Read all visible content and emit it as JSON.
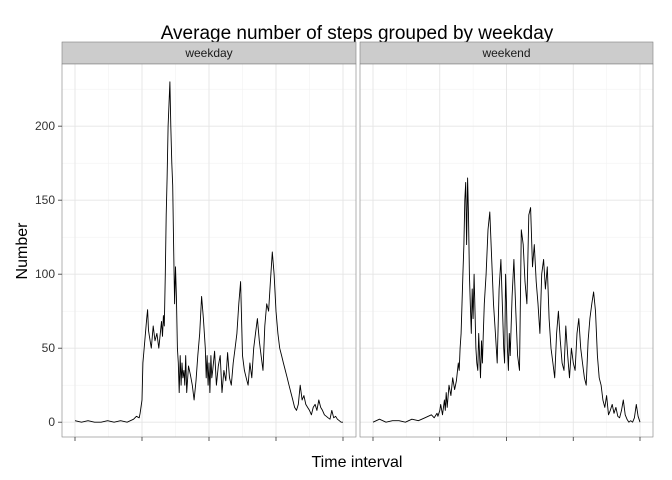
{
  "chart_data": {
    "type": "line",
    "title": "Average number of steps grouped by weekday",
    "xlabel": "Time interval",
    "ylabel": "Number",
    "xlim": [
      0,
      288
    ],
    "ylim": [
      -10,
      242
    ],
    "y_ticks": [
      0,
      50,
      100,
      150,
      200
    ],
    "x_ticks": [
      0,
      72,
      144,
      216,
      288
    ],
    "x_tick_labels": [
      "",
      "",
      "",
      "",
      ""
    ],
    "grid": true,
    "legend": "none",
    "line_color": "#000000",
    "panels": [
      {
        "name": "weekday",
        "x": [
          0,
          7,
          14,
          21,
          28,
          35,
          42,
          49,
          56,
          63,
          66,
          69,
          70,
          72,
          73,
          75,
          77,
          78,
          79,
          80,
          82,
          84,
          86,
          88,
          90,
          92,
          93,
          94,
          95,
          96,
          97,
          98,
          99,
          100,
          101,
          102,
          103,
          104,
          105,
          106,
          107,
          108,
          109,
          110,
          111,
          112,
          113,
          114,
          115,
          116,
          117,
          118,
          119,
          120,
          122,
          124,
          126,
          128,
          130,
          132,
          134,
          136,
          138,
          140,
          141,
          142,
          143,
          144,
          145,
          146,
          147,
          148,
          150,
          152,
          154,
          156,
          158,
          160,
          162,
          164,
          166,
          168,
          170,
          172,
          174,
          176,
          178,
          180,
          182,
          184,
          186,
          188,
          190,
          192,
          194,
          196,
          198,
          200,
          202,
          204,
          206,
          208,
          210,
          212,
          214,
          216,
          218,
          220,
          222,
          224,
          226,
          228,
          230,
          232,
          234,
          236,
          238,
          240,
          242,
          244,
          246,
          248,
          250,
          252,
          254,
          256,
          258,
          260,
          262,
          264,
          266,
          268,
          270,
          272,
          274,
          276,
          278,
          280,
          282,
          284,
          286,
          288
        ],
        "y": [
          1,
          0,
          1,
          0,
          0,
          1,
          0,
          1,
          0,
          2,
          4,
          3,
          6,
          15,
          40,
          55,
          70,
          76,
          62,
          58,
          50,
          65,
          55,
          60,
          50,
          62,
          68,
          58,
          72,
          65,
          100,
          140,
          165,
          200,
          215,
          230,
          200,
          175,
          160,
          120,
          80,
          105,
          85,
          50,
          40,
          20,
          45,
          25,
          40,
          30,
          35,
          25,
          45,
          20,
          38,
          32,
          25,
          15,
          28,
          45,
          60,
          85,
          70,
          50,
          30,
          45,
          25,
          40,
          20,
          45,
          30,
          35,
          48,
          25,
          38,
          45,
          20,
          35,
          28,
          47,
          30,
          25,
          40,
          50,
          60,
          80,
          95,
          45,
          35,
          30,
          25,
          40,
          30,
          50,
          60,
          70,
          55,
          45,
          35,
          65,
          80,
          75,
          95,
          115,
          100,
          75,
          60,
          50,
          45,
          40,
          35,
          30,
          25,
          20,
          15,
          10,
          8,
          12,
          25,
          15,
          18,
          12,
          10,
          8,
          5,
          10,
          12,
          8,
          15,
          10,
          8,
          5,
          4,
          3,
          2,
          8,
          3,
          4,
          2,
          1,
          0,
          0
        ]
      },
      {
        "name": "weekend",
        "x": [
          0,
          7,
          14,
          21,
          28,
          35,
          42,
          49,
          56,
          63,
          66,
          69,
          70,
          72,
          73,
          75,
          77,
          78,
          79,
          80,
          82,
          84,
          86,
          88,
          90,
          92,
          93,
          94,
          95,
          96,
          97,
          98,
          99,
          100,
          101,
          102,
          103,
          104,
          105,
          106,
          107,
          108,
          109,
          110,
          111,
          112,
          113,
          114,
          115,
          116,
          117,
          118,
          119,
          120,
          122,
          124,
          126,
          128,
          130,
          132,
          134,
          136,
          138,
          140,
          141,
          142,
          143,
          144,
          145,
          146,
          147,
          148,
          150,
          152,
          154,
          156,
          158,
          160,
          162,
          164,
          166,
          168,
          170,
          172,
          174,
          176,
          178,
          180,
          182,
          184,
          186,
          188,
          190,
          192,
          194,
          196,
          198,
          200,
          202,
          204,
          206,
          208,
          210,
          212,
          214,
          216,
          218,
          220,
          222,
          224,
          226,
          228,
          230,
          232,
          234,
          236,
          238,
          240,
          242,
          244,
          246,
          248,
          250,
          252,
          254,
          256,
          258,
          260,
          262,
          264,
          266,
          268,
          270,
          272,
          274,
          276,
          278,
          280,
          282,
          284,
          286,
          288
        ],
        "y": [
          0,
          2,
          0,
          1,
          1,
          0,
          2,
          1,
          3,
          5,
          3,
          6,
          4,
          8,
          12,
          5,
          15,
          8,
          20,
          10,
          25,
          18,
          30,
          22,
          28,
          40,
          35,
          50,
          60,
          80,
          100,
          120,
          150,
          162,
          120,
          165,
          140,
          100,
          80,
          60,
          90,
          70,
          100,
          75,
          50,
          40,
          35,
          60,
          45,
          30,
          55,
          40,
          60,
          80,
          100,
          130,
          142,
          110,
          80,
          60,
          40,
          90,
          110,
          70,
          50,
          40,
          100,
          80,
          50,
          35,
          60,
          45,
          85,
          110,
          75,
          45,
          35,
          130,
          120,
          95,
          80,
          140,
          145,
          105,
          120,
          95,
          80,
          60,
          100,
          110,
          90,
          105,
          70,
          50,
          40,
          30,
          60,
          75,
          55,
          40,
          35,
          65,
          45,
          30,
          50,
          40,
          35,
          60,
          70,
          50,
          40,
          30,
          25,
          55,
          70,
          80,
          88,
          75,
          45,
          30,
          25,
          15,
          10,
          18,
          5,
          8,
          12,
          6,
          10,
          4,
          3,
          8,
          15,
          5,
          2,
          0,
          1,
          0,
          3,
          12,
          4,
          0
        ]
      }
    ]
  }
}
